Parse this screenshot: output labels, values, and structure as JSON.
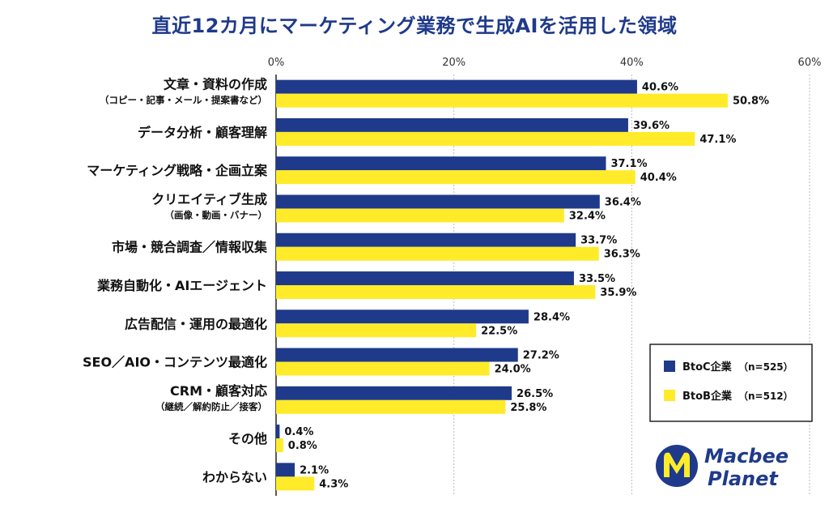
{
  "chart_data": {
    "type": "bar",
    "orientation": "horizontal",
    "title": "直近12カ月にマーケティング業務で生成AIを活用した領域",
    "categories": [
      {
        "main": "文章・資料の作成",
        "sub": "（コピー・記事・メール・提案書など）"
      },
      {
        "main": "データ分析・顧客理解",
        "sub": ""
      },
      {
        "main": "マーケティング戦略・企画立案",
        "sub": ""
      },
      {
        "main": "クリエイティブ生成",
        "sub": "（画像・動画・バナー）"
      },
      {
        "main": "市場・競合調査／情報収集",
        "sub": ""
      },
      {
        "main": "業務自動化・AIエージェント",
        "sub": ""
      },
      {
        "main": "広告配信・運用の最適化",
        "sub": ""
      },
      {
        "main": "SEO／AIO・コンテンツ最適化",
        "sub": ""
      },
      {
        "main": "CRM・顧客対応",
        "sub": "（継続／解約防止／接客）"
      },
      {
        "main": "その他",
        "sub": ""
      },
      {
        "main": "わからない",
        "sub": ""
      }
    ],
    "series": [
      {
        "name": "BtoC企業",
        "n_label": "（n=525）",
        "color": "#1f3a8a",
        "values": [
          40.6,
          39.6,
          37.1,
          36.4,
          33.7,
          33.5,
          28.4,
          27.2,
          26.5,
          0.4,
          2.1
        ],
        "labels": [
          "40.6%",
          "39.6%",
          "37.1%",
          "36.4%",
          "33.7%",
          "33.5%",
          "28.4%",
          "27.2%",
          "26.5%",
          "0.4%",
          "2.1%"
        ]
      },
      {
        "name": "BtoB企業",
        "n_label": "（n=512）",
        "color": "#ffeb2a",
        "values": [
          50.8,
          47.1,
          40.4,
          32.4,
          36.3,
          35.9,
          22.5,
          24.0,
          25.8,
          0.8,
          4.3
        ],
        "labels": [
          "50.8%",
          "47.1%",
          "40.4%",
          "32.4%",
          "36.3%",
          "35.9%",
          "22.5%",
          "24.0%",
          "25.8%",
          "0.8%",
          "4.3%"
        ]
      }
    ],
    "xlim": [
      0,
      60
    ],
    "xticks": [
      0,
      20,
      40,
      60
    ],
    "xtick_labels": [
      "0%",
      "20%",
      "40%",
      "60%"
    ],
    "grid": true,
    "legend_position": "bottom-right"
  },
  "logo": {
    "line1": "Macbee",
    "line2": "Planet"
  }
}
